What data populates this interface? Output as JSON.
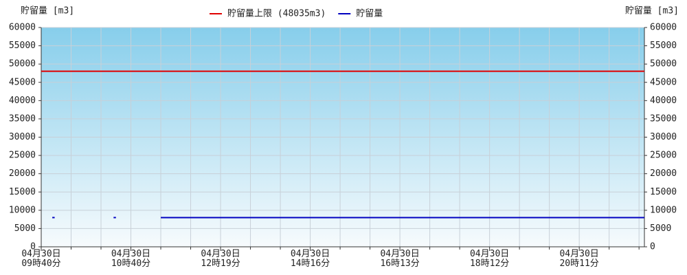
{
  "chart_data": {
    "type": "line",
    "y_label": "貯留量 [m3]",
    "y2_label": "貯留量 [m3]",
    "x": [
      0,
      0.37,
      0.45,
      1.5,
      2.42,
      2.5,
      3.0,
      4.0,
      20.18
    ],
    "xlim": [
      0,
      20.18
    ],
    "xticks": [
      {
        "value": 0,
        "label": "04月30日\n09時40分"
      },
      {
        "value": 3,
        "label": "04月30日\n10時40分"
      },
      {
        "value": 6,
        "label": "04月30日\n12時19分"
      },
      {
        "value": 9,
        "label": "04月30日\n14時16分"
      },
      {
        "value": 12,
        "label": "04月30日\n16時13分"
      },
      {
        "value": 15,
        "label": "04月30日\n18時12分"
      },
      {
        "value": 18,
        "label": "04月30日\n20時11分"
      }
    ],
    "x_minor_ticks": [
      1,
      2,
      4,
      5,
      7,
      8,
      10,
      11,
      13,
      14,
      16,
      17,
      19,
      20
    ],
    "ylim": [
      0,
      60000
    ],
    "yticks": [
      0,
      5000,
      10000,
      15000,
      20000,
      25000,
      30000,
      35000,
      40000,
      45000,
      50000,
      55000,
      60000
    ],
    "y2lim": [
      0,
      60000
    ],
    "y2ticks": [
      0,
      5000,
      10000,
      15000,
      20000,
      25000,
      30000,
      35000,
      40000,
      45000,
      50000,
      55000,
      60000
    ],
    "grid": true,
    "series": [
      {
        "name": "貯留量上限 (48035m3)",
        "color": "#e00000",
        "values": [
          48035,
          48035,
          48035,
          48035,
          48035,
          48035,
          48035,
          48035,
          48035
        ]
      },
      {
        "name": "貯留量",
        "color": "#0000c0",
        "values": [
          null,
          8000,
          8000,
          null,
          8000,
          8000,
          null,
          8000,
          8000
        ]
      }
    ]
  }
}
